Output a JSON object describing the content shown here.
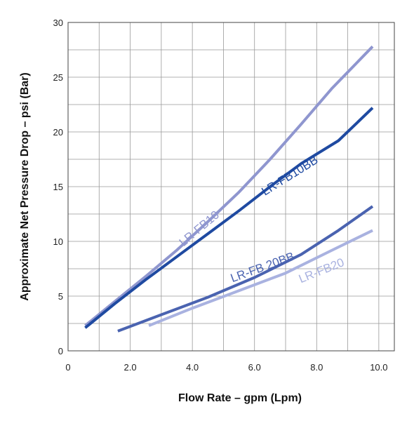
{
  "chart_data": {
    "type": "line",
    "xlabel": "Flow Rate – gpm (Lpm)",
    "ylabel": "Approximate Net Pressure Drop – psi (Bar)",
    "xlim": [
      0,
      10.5
    ],
    "ylim": [
      0,
      30
    ],
    "x_ticks": [
      0,
      2,
      4,
      6,
      8,
      10
    ],
    "x_tick_labels": [
      "0",
      "2.0",
      "4.0",
      "6.0",
      "8.0",
      "10.0"
    ],
    "y_ticks": [
      0,
      5,
      10,
      15,
      20,
      25,
      30
    ],
    "y_tick_labels": [
      "0",
      "5",
      "10",
      "15",
      "20",
      "25",
      "30"
    ],
    "grid": true,
    "legend": "none",
    "series": [
      {
        "name": "LR-FB10",
        "color": "#8f96cf",
        "x": [
          0.55,
          1.5,
          2.5,
          3.5,
          4.5,
          5.5,
          6.5,
          7.5,
          8.5,
          9.8
        ],
        "y": [
          2.3,
          4.5,
          6.8,
          9.2,
          11.8,
          14.5,
          17.5,
          20.7,
          24.0,
          27.8
        ]
      },
      {
        "name": "LR-FB10BB",
        "color": "#1f4aa1",
        "x": [
          0.55,
          1.5,
          2.5,
          3.5,
          4.5,
          5.5,
          6.5,
          7.5,
          8.7,
          9.8
        ],
        "y": [
          2.1,
          4.3,
          6.5,
          8.6,
          10.7,
          12.8,
          15.0,
          17.1,
          19.2,
          22.2
        ]
      },
      {
        "name": "LR-FB 20BB",
        "color": "#4a63b0",
        "x": [
          1.6,
          3.0,
          4.5,
          6.0,
          7.5,
          8.7,
          9.8
        ],
        "y": [
          1.8,
          3.3,
          4.9,
          6.7,
          8.8,
          11.0,
          13.2
        ]
      },
      {
        "name": "LR-FB20",
        "color": "#a9b2e0",
        "x": [
          2.6,
          4.0,
          5.5,
          7.0,
          8.5,
          9.8
        ],
        "y": [
          2.3,
          3.9,
          5.5,
          7.1,
          9.2,
          11.0
        ]
      }
    ],
    "annotations": [
      {
        "series": 0,
        "text": "LR-FB10",
        "at": [
          4.3,
          10.9
        ],
        "angle": -40
      },
      {
        "series": 1,
        "text": "LR-FB10BB",
        "at": [
          7.2,
          15.7
        ],
        "angle": -32
      },
      {
        "series": 2,
        "text": "LR-FB 20BB",
        "at": [
          6.3,
          7.3
        ],
        "angle": -20
      },
      {
        "series": 3,
        "text": "LR-FB20",
        "at": [
          8.2,
          7.0
        ],
        "angle": -22
      }
    ]
  }
}
